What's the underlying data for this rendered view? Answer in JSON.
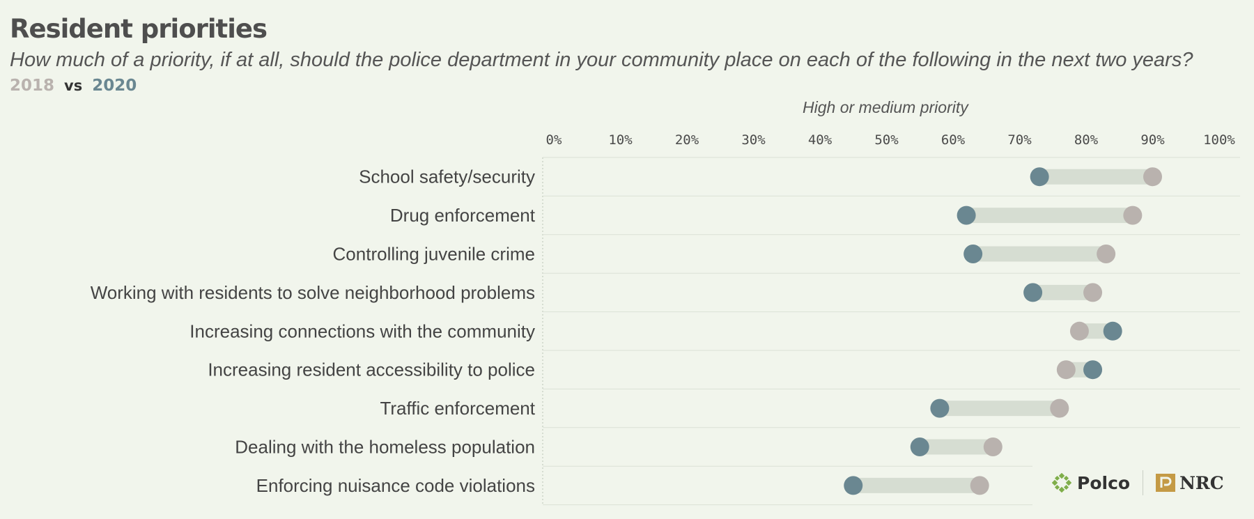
{
  "title": "Resident priorities",
  "subtitle": "How much of a priority, if at all, should the police department in your community place on each of the following in the next two years?",
  "legend": {
    "year_a": "2018",
    "vs": "vs",
    "year_b": "2020"
  },
  "colors": {
    "y2018": "#b9b2ae",
    "y2020": "#6a8791",
    "connector": "#d6ddd2",
    "background": "#f1f5ec"
  },
  "logos": {
    "polco": "Polco",
    "nrc": "NRC"
  },
  "chart_data": {
    "type": "dumbbell",
    "title": "Resident priorities",
    "xlabel": "High or medium priority",
    "x_ticks": [
      "0%",
      "10%",
      "20%",
      "30%",
      "40%",
      "50%",
      "60%",
      "70%",
      "80%",
      "90%",
      "100%"
    ],
    "xlim": [
      0,
      100
    ],
    "categories": [
      "School safety/security",
      "Drug enforcement",
      "Controlling juvenile crime",
      "Working with residents to solve neighborhood problems",
      "Increasing connections with the community",
      "Increasing resident accessibility to police",
      "Traffic enforcement",
      "Dealing with the homeless population",
      "Enforcing nuisance code violations"
    ],
    "series": [
      {
        "name": "2018",
        "values": [
          90,
          87,
          83,
          81,
          79,
          77,
          76,
          66,
          64
        ]
      },
      {
        "name": "2020",
        "values": [
          73,
          62,
          63,
          72,
          84,
          81,
          58,
          55,
          45
        ]
      }
    ]
  }
}
